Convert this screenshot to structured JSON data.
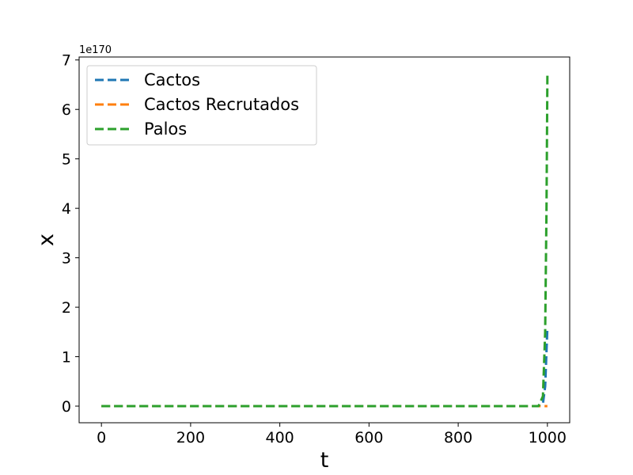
{
  "chart_data": {
    "type": "line",
    "xlabel": "t",
    "ylabel": "x",
    "xlim": [
      -50,
      1050
    ],
    "ylim": [
      -3.36e+169,
      7.06e+170
    ],
    "x_ticks": [
      0,
      200,
      400,
      600,
      800,
      1000
    ],
    "x_tick_labels": [
      "0",
      "200",
      "400",
      "600",
      "800",
      "1000"
    ],
    "y_ticks": [
      0,
      1,
      2,
      3,
      4,
      5,
      6,
      7
    ],
    "y_tick_labels": [
      "0",
      "1",
      "2",
      "3",
      "4",
      "5",
      "6",
      "7"
    ],
    "y_scale_label": "1e170",
    "y_scale": 1e+170,
    "grid": false,
    "legend_position": "upper-left",
    "series": [
      {
        "name": "Cactos",
        "color": "#1f77b4",
        "style": "dashed",
        "x": [
          0,
          200,
          400,
          600,
          800,
          980,
          990,
          995,
          1000
        ],
        "y": [
          0,
          0,
          0,
          0,
          0,
          0,
          0.05,
          0.4,
          1.6
        ]
      },
      {
        "name": "Cactos Recrutados",
        "color": "#ff7f0e",
        "style": "dashed",
        "x": [
          0,
          200,
          400,
          600,
          800,
          1000
        ],
        "y": [
          0,
          0,
          0,
          0,
          0,
          0
        ]
      },
      {
        "name": "Palos",
        "color": "#2ca02c",
        "style": "dashed",
        "x": [
          0,
          200,
          400,
          600,
          800,
          980,
          990,
          995,
          998,
          1000
        ],
        "y": [
          0,
          0,
          0,
          0,
          0,
          0,
          0.2,
          1.5,
          4.0,
          6.7
        ]
      }
    ]
  }
}
